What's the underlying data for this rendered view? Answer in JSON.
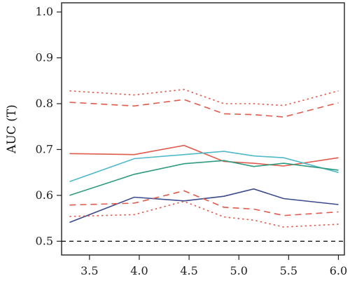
{
  "chart_data": {
    "type": "line",
    "title": "",
    "xlabel": "",
    "ylabel": "AUC (T)",
    "xlim": [
      3.22,
      6.06
    ],
    "ylim": [
      0.47,
      1.02
    ],
    "x_ticks": [
      "3.5",
      "4.0",
      "4.5",
      "5.0",
      "5.5",
      "6.0"
    ],
    "y_ticks": [
      "0.5",
      "0.6",
      "0.7",
      "0.8",
      "0.9",
      "1.0"
    ],
    "grid": false,
    "legend": "none",
    "reference_line": {
      "y": 0.5,
      "style": "dashed",
      "color": "#000000"
    },
    "x": [
      3.3,
      3.95,
      4.45,
      4.85,
      5.15,
      5.45,
      6.0
    ],
    "series": [
      {
        "color": "#e05a4b",
        "dash": "dotted",
        "values": [
          0.828,
          0.819,
          0.831,
          0.8,
          0.8,
          0.796,
          0.828
        ]
      },
      {
        "color": "#e05a4b",
        "dash": "dashed",
        "values": [
          0.803,
          0.795,
          0.809,
          0.778,
          0.776,
          0.771,
          0.802
        ]
      },
      {
        "color": "#e05a4b",
        "dash": "solid",
        "values": [
          0.691,
          0.689,
          0.709,
          0.674,
          0.67,
          0.664,
          0.682
        ]
      },
      {
        "color": "#4fb9c9",
        "dash": "solid",
        "values": [
          0.63,
          0.68,
          0.689,
          0.696,
          0.686,
          0.682,
          0.65
        ]
      },
      {
        "color": "#2e9a7f",
        "dash": "solid",
        "values": [
          0.6,
          0.646,
          0.669,
          0.676,
          0.663,
          0.67,
          0.655
        ]
      },
      {
        "color": "#3b4a8c",
        "dash": "solid",
        "values": [
          0.541,
          0.596,
          0.588,
          0.598,
          0.614,
          0.593,
          0.58
        ]
      },
      {
        "color": "#e05a4b",
        "dash": "dashed",
        "values": [
          0.579,
          0.583,
          0.61,
          0.574,
          0.57,
          0.556,
          0.564
        ]
      },
      {
        "color": "#e05a4b",
        "dash": "dotted",
        "values": [
          0.554,
          0.558,
          0.587,
          0.553,
          0.546,
          0.531,
          0.537
        ]
      }
    ]
  }
}
